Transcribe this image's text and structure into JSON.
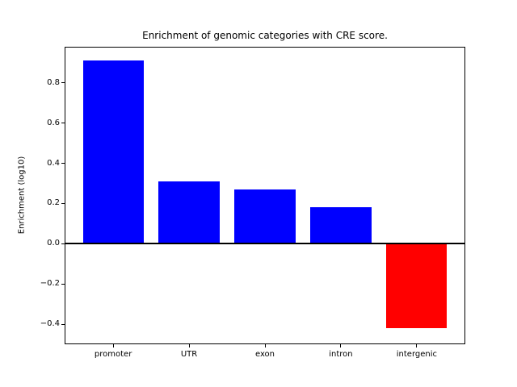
{
  "chart_data": {
    "type": "bar",
    "title": "Enrichment of genomic categories with CRE score.",
    "xlabel": "",
    "ylabel": "Enrichment (log10)",
    "categories": [
      "promoter",
      "UTR",
      "exon",
      "intron",
      "intergenic"
    ],
    "values": [
      0.91,
      0.31,
      0.27,
      0.18,
      -0.42
    ],
    "bar_colors": [
      "#0000ff",
      "#0000ff",
      "#0000ff",
      "#0000ff",
      "#ff0000"
    ],
    "positive_color": "#0000ff",
    "negative_color": "#ff0000",
    "axis_color": "#000000",
    "background_color": "#ffffff",
    "ylim": [
      -0.5,
      0.98
    ],
    "xlim_units": [
      -0.64,
      4.64
    ],
    "bar_width_fraction": 0.8,
    "yticks": [
      0.8,
      0.6,
      0.4,
      0.2,
      0.0,
      -0.2,
      -0.4
    ],
    "ytick_labels": [
      "0.8",
      "0.6",
      "0.4",
      "0.2",
      "0.0",
      "−0.2",
      "−0.4"
    ],
    "zero_line": true,
    "grid": false,
    "legend": null
  }
}
